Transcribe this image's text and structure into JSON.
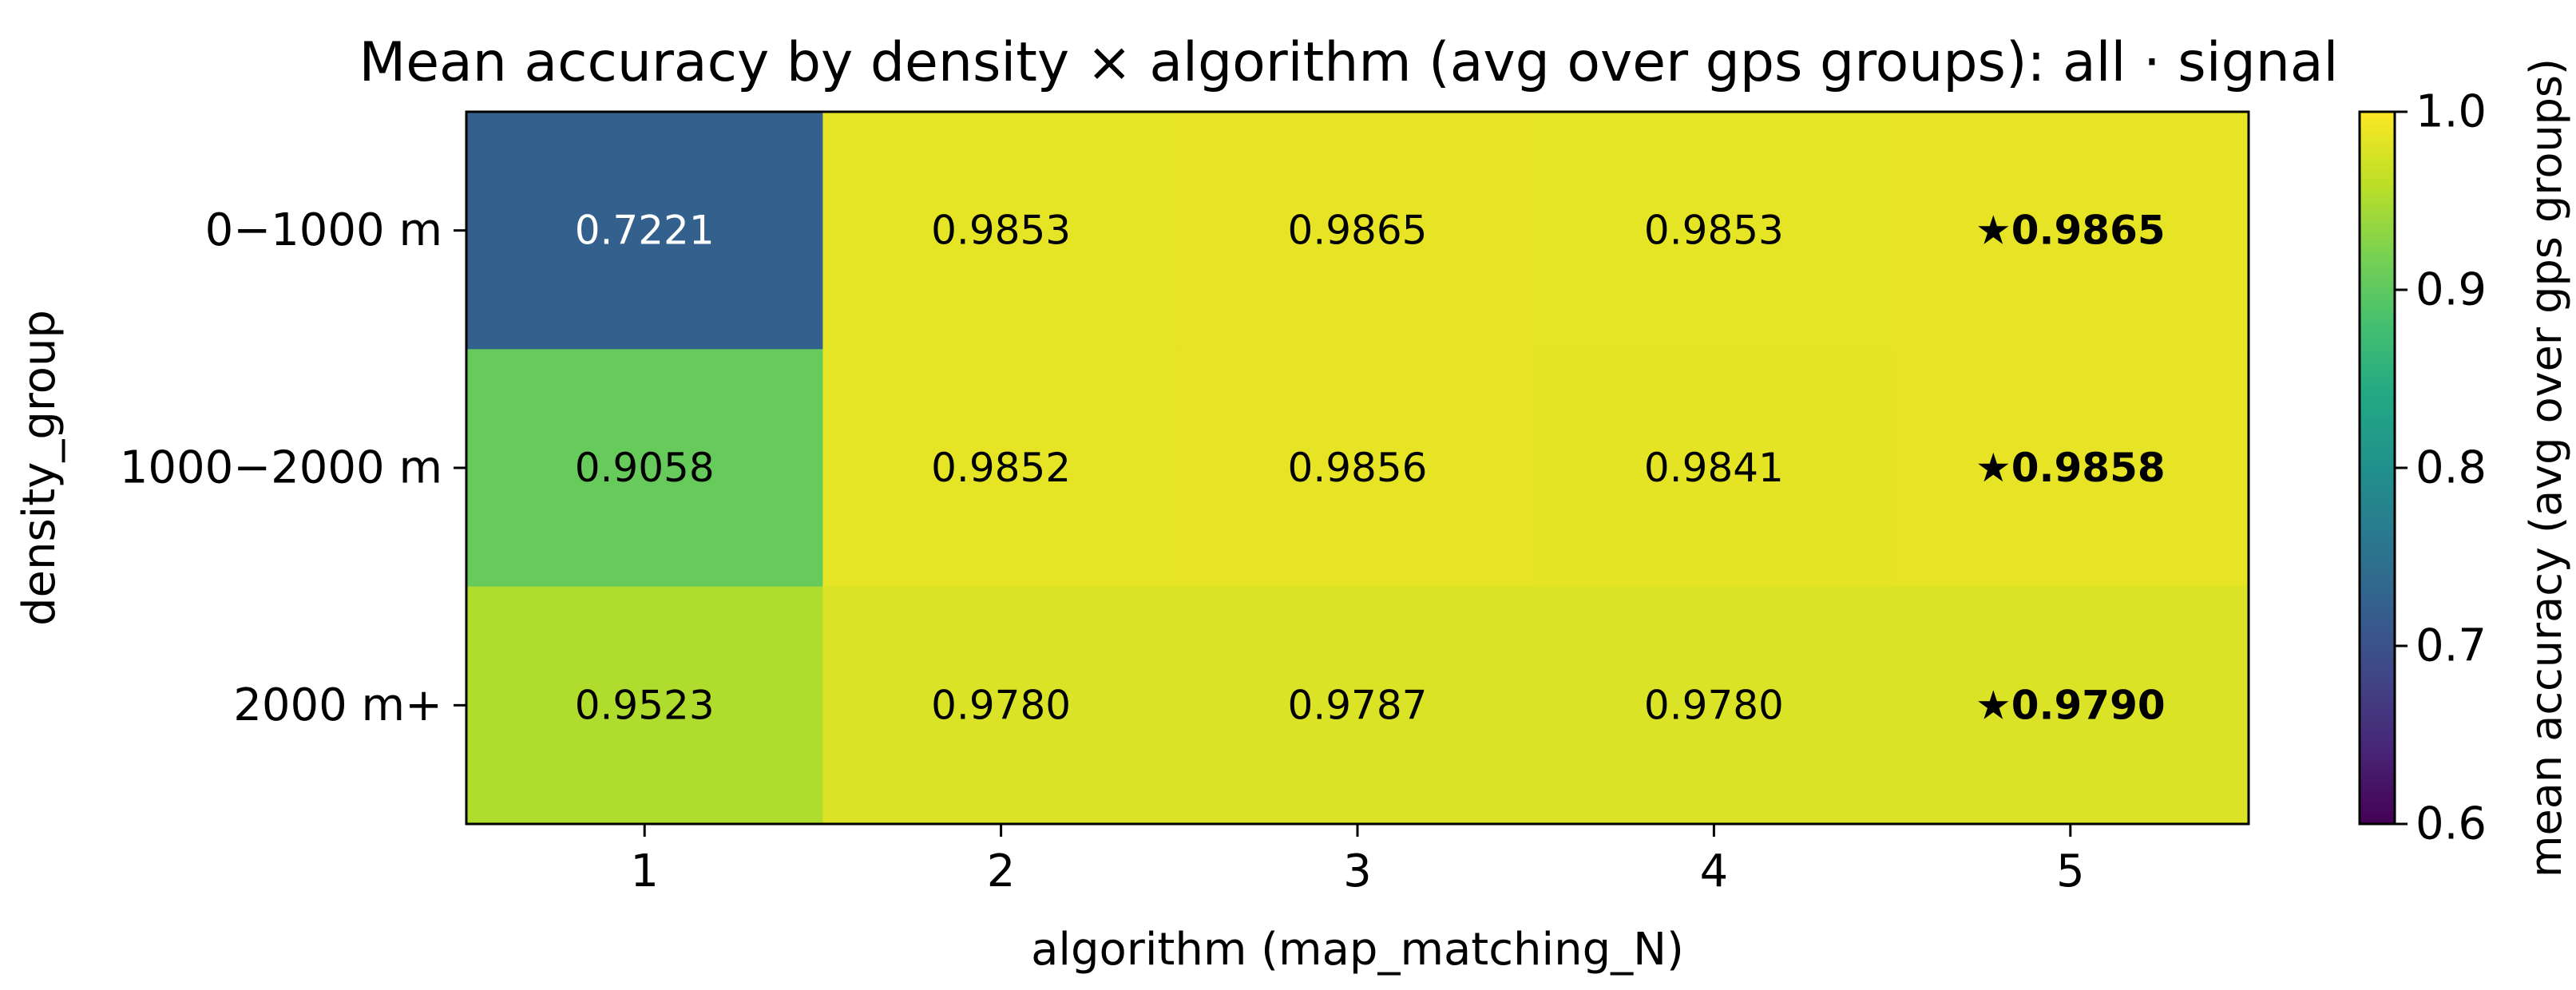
{
  "chart_data": {
    "type": "heatmap",
    "title": "Mean accuracy by density × algorithm (avg over gps groups): all · signal",
    "xlabel": "algorithm (map_matching_N)",
    "ylabel": "density_group",
    "x_categories": [
      "1",
      "2",
      "3",
      "4",
      "5"
    ],
    "y_categories": [
      "0−1000 m",
      "1000−2000 m",
      "2000 m+"
    ],
    "values": [
      [
        0.7221,
        0.9853,
        0.9865,
        0.9853,
        0.9865
      ],
      [
        0.9058,
        0.9852,
        0.9856,
        0.9841,
        0.9858
      ],
      [
        0.9523,
        0.978,
        0.9787,
        0.978,
        0.979
      ]
    ],
    "cell_labels": [
      [
        "0.7221",
        "0.9853",
        "0.9865",
        "0.9853",
        "★0.9865"
      ],
      [
        "0.9058",
        "0.9852",
        "0.9856",
        "0.9841",
        "★0.9858"
      ],
      [
        "0.9523",
        "0.9780",
        "0.9787",
        "0.9780",
        "★0.9790"
      ]
    ],
    "best_per_row_column": 4,
    "colormap": "viridis",
    "colorbar": {
      "label": "mean accuracy (avg over gps groups)",
      "range": [
        0.6,
        1.0
      ],
      "ticks": [
        "0.6",
        "0.7",
        "0.8",
        "0.9",
        "1.0"
      ]
    },
    "grid": false
  }
}
